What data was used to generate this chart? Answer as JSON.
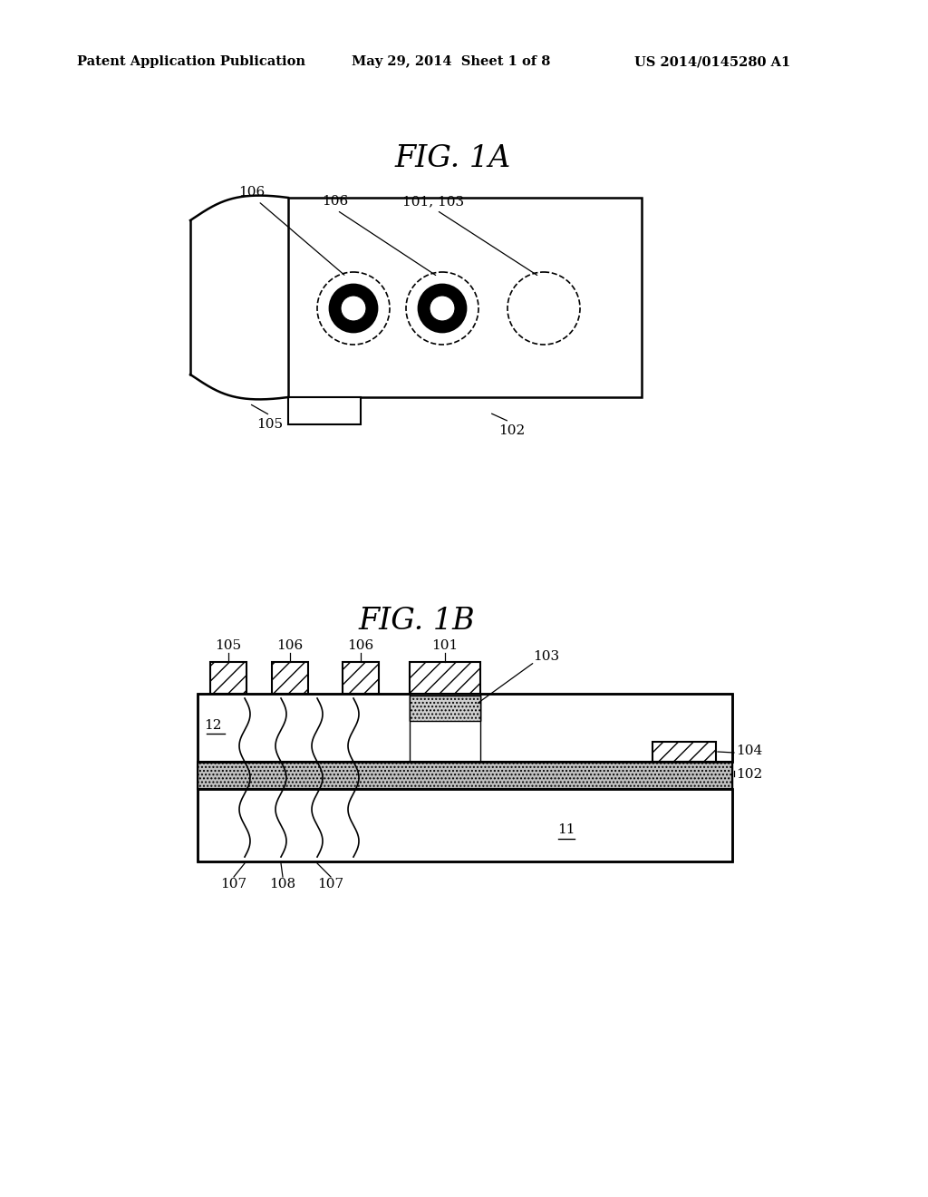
{
  "bg_color": "#ffffff",
  "header_left": "Patent Application Publication",
  "header_mid": "May 29, 2014  Sheet 1 of 8",
  "header_right": "US 2014/0145280 A1",
  "fig1a_title": "FIG. 1A",
  "fig1b_title": "FIG. 1B"
}
